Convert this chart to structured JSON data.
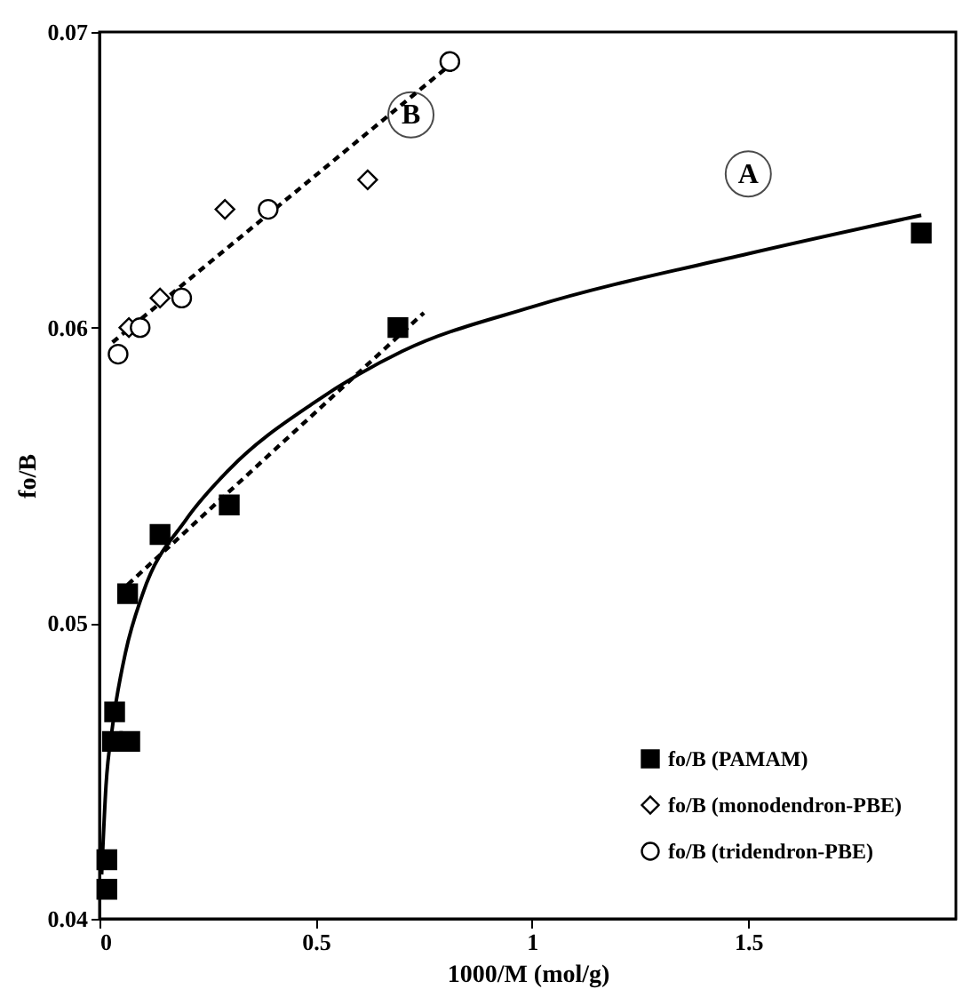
{
  "chart_data": {
    "type": "scatter",
    "xlabel": "1000/M (mol/g)",
    "ylabel": "fo/B",
    "xlim": [
      0,
      1.98
    ],
    "xticks": [
      0,
      0.5,
      1,
      1.5
    ],
    "ylim": [
      0.04,
      0.07
    ],
    "yticks": [
      0.04,
      0.05,
      0.06,
      0.07
    ],
    "grid": false,
    "legend": "bottom right",
    "series": [
      {
        "name": "fo/B (PAMAM)",
        "marker": "square",
        "color": "#000000",
        "x": [
          0.017,
          0.017,
          0.03,
          0.035,
          0.07,
          0.065,
          0.14,
          0.3,
          0.69,
          1.9
        ],
        "values": [
          0.041,
          0.042,
          0.046,
          0.047,
          0.046,
          0.051,
          0.053,
          0.054,
          0.06,
          0.0632
        ]
      },
      {
        "name": "fo/B (monodendron-PBE)",
        "marker": "diamond",
        "color": "#000000",
        "x": [
          0.068,
          0.14,
          0.29,
          0.62
        ],
        "values": [
          0.06,
          0.061,
          0.064,
          0.065
        ]
      },
      {
        "name": "fo/B (tridendron-PBE)",
        "marker": "circle",
        "color": "#000000",
        "x": [
          0.043,
          0.094,
          0.19,
          0.39,
          0.81
        ],
        "values": [
          0.0591,
          0.06,
          0.061,
          0.064,
          0.069
        ]
      },
      {
        "type": "line",
        "line_style": "solid",
        "color": "#000000",
        "x": [
          0.005,
          0.015,
          0.03,
          0.06,
          0.1,
          0.2,
          0.3,
          0.5,
          0.7,
          1.0,
          1.5,
          1.9
        ],
        "values": [
          0.0415,
          0.0445,
          0.0465,
          0.049,
          0.051,
          0.0535,
          0.0552,
          0.0575,
          0.0592,
          0.0607,
          0.0625,
          0.0638
        ]
      },
      {
        "type": "line",
        "line_style": "dashed",
        "color": "#000000",
        "x": [
          0.065,
          0.75
        ],
        "values": [
          0.0513,
          0.0605
        ]
      },
      {
        "type": "line",
        "line_style": "dashed",
        "color": "#000000",
        "x": [
          0.03,
          0.82
        ],
        "values": [
          0.0595,
          0.069
        ]
      }
    ],
    "annotations": [
      {
        "text": "A",
        "x": 1.5,
        "y": 0.0652
      },
      {
        "text": "B",
        "x": 0.72,
        "y": 0.0672
      }
    ]
  }
}
